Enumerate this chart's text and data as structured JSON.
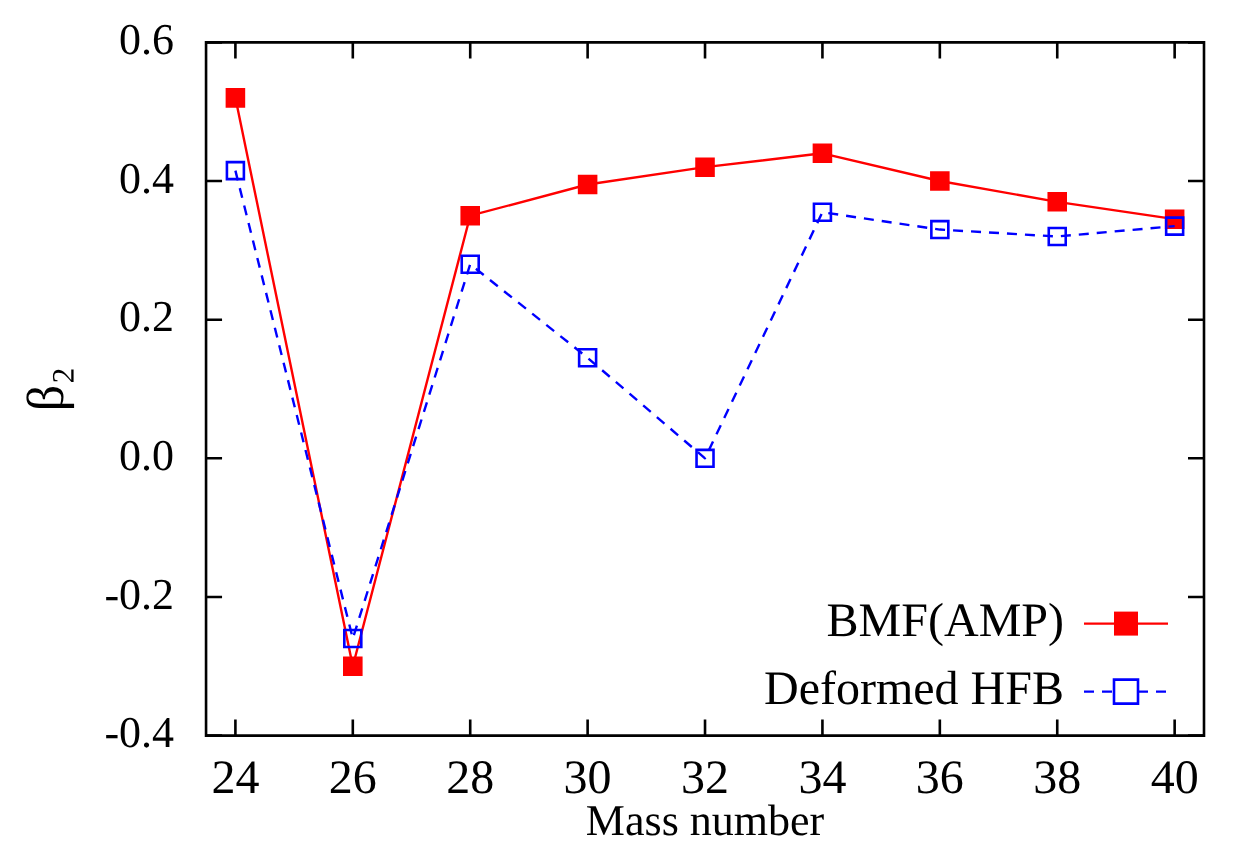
{
  "chart_data": {
    "type": "line",
    "xlabel": "Mass number",
    "ylabel": "β₂",
    "x": [
      24,
      26,
      28,
      30,
      32,
      34,
      36,
      38,
      40
    ],
    "series": [
      {
        "name": "BMF(AMP)",
        "color": "#ff0000",
        "values": [
          0.52,
          -0.3,
          0.35,
          0.395,
          0.42,
          0.44,
          0.4,
          0.37,
          0.345
        ],
        "marker": "square",
        "line_style": "solid"
      },
      {
        "name": "Deformed HFB",
        "color": "#0000ff",
        "values": [
          0.415,
          -0.26,
          0.28,
          0.145,
          0.0,
          0.355,
          0.33,
          0.32,
          0.335
        ],
        "marker": "square",
        "line_style": "dashed"
      }
    ],
    "xlim": [
      23.5,
      40.5
    ],
    "xticks": [
      24,
      26,
      28,
      30,
      32,
      34,
      36,
      38,
      40
    ],
    "ylim": [
      -0.4,
      0.6
    ],
    "yticks": [
      {
        "value": -0.4,
        "label": "-0.4"
      },
      {
        "value": -0.2,
        "label": "-0.2"
      },
      {
        "value": 0,
        "label": "0.0"
      },
      0.2,
      0.4,
      0.6
    ],
    "grid": false,
    "legend": "bottom right"
  }
}
